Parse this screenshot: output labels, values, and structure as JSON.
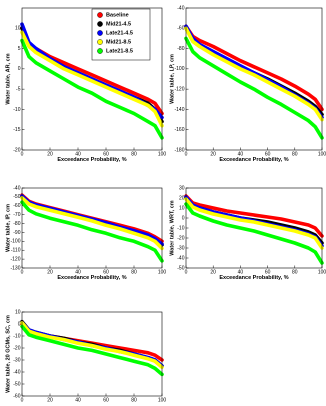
{
  "chart_data": [
    {
      "type": "line",
      "ylabel": "Water table, AR, cm",
      "xlabel": "Exceedance Probability, %",
      "xlim": [
        0,
        100
      ],
      "xticks": [
        0,
        20,
        40,
        60,
        80,
        100
      ],
      "ylim": [
        -20,
        15
      ],
      "yticks": [
        -20,
        -15,
        -10,
        -5,
        0,
        5,
        10
      ],
      "legend": "upper right",
      "x": [
        0,
        5,
        10,
        20,
        30,
        40,
        50,
        60,
        70,
        80,
        90,
        95,
        100
      ],
      "series": [
        {
          "name": "Baseline",
          "color": "#ff0000",
          "values": [
            10,
            6,
            5,
            3,
            1.5,
            0,
            -1.5,
            -3,
            -4.5,
            -6,
            -7.5,
            -8.5,
            -11
          ]
        },
        {
          "name": "Mid21-4.5",
          "color": "#000000",
          "values": [
            10,
            6,
            4.5,
            2.5,
            0.5,
            -1,
            -2.5,
            -4,
            -5.5,
            -7,
            -8.5,
            -10,
            -13
          ]
        },
        {
          "name": "Late21-4.5",
          "color": "#0000ff",
          "values": [
            11,
            6.5,
            5,
            2.5,
            0.5,
            -1,
            -2.5,
            -4,
            -5.5,
            -7,
            -9,
            -10,
            -12
          ]
        },
        {
          "name": "Mid21-8.5",
          "color": "#ffff00",
          "values": [
            9,
            5.5,
            4,
            2,
            0,
            -1.5,
            -3,
            -4.5,
            -6,
            -7.5,
            -9,
            -10.5,
            -14
          ]
        },
        {
          "name": "Late21-8.5",
          "color": "#00ff00",
          "values": [
            7,
            3,
            1.5,
            -0.5,
            -2.5,
            -4.5,
            -6,
            -8,
            -9.5,
            -11,
            -13,
            -14,
            -17
          ]
        }
      ]
    },
    {
      "type": "line",
      "ylabel": "Water table, LP, cm",
      "xlabel": "Exceedance Probability, %",
      "xlim": [
        0,
        100
      ],
      "xticks": [
        0,
        20,
        40,
        60,
        80,
        100
      ],
      "ylim": [
        -180,
        -40
      ],
      "yticks": [
        -180,
        -160,
        -140,
        -120,
        -100,
        -80,
        -60,
        -40
      ],
      "x": [
        0,
        5,
        10,
        20,
        30,
        40,
        50,
        60,
        70,
        80,
        90,
        95,
        100
      ],
      "series": [
        {
          "color": "#ff0000",
          "values": [
            -58,
            -68,
            -72,
            -78,
            -85,
            -92,
            -98,
            -104,
            -110,
            -117,
            -125,
            -130,
            -140
          ]
        },
        {
          "color": "#000000",
          "values": [
            -60,
            -72,
            -77,
            -84,
            -91,
            -98,
            -104,
            -110,
            -117,
            -124,
            -132,
            -137,
            -145
          ]
        },
        {
          "color": "#0000ff",
          "values": [
            -58,
            -70,
            -76,
            -83,
            -90,
            -97,
            -104,
            -111,
            -118,
            -126,
            -134,
            -139,
            -148
          ]
        },
        {
          "color": "#ffff00",
          "values": [
            -60,
            -73,
            -78,
            -86,
            -93,
            -100,
            -106,
            -113,
            -120,
            -127,
            -135,
            -140,
            -150
          ]
        },
        {
          "color": "#00ff00",
          "values": [
            -70,
            -83,
            -89,
            -97,
            -105,
            -113,
            -120,
            -128,
            -135,
            -143,
            -151,
            -157,
            -168
          ]
        }
      ]
    },
    {
      "type": "line",
      "ylabel": "Water table, IP, cm",
      "xlabel": "Exceedance Probability, %",
      "xlim": [
        0,
        100
      ],
      "xticks": [
        0,
        20,
        40,
        60,
        80,
        100
      ],
      "ylim": [
        -130,
        -40
      ],
      "yticks": [
        -130,
        -120,
        -110,
        -100,
        -90,
        -80,
        -70,
        -60,
        -50,
        -40
      ],
      "x": [
        0,
        5,
        10,
        20,
        30,
        40,
        50,
        60,
        70,
        80,
        90,
        95,
        100
      ],
      "series": [
        {
          "color": "#ff0000",
          "values": [
            -48,
            -55,
            -58,
            -62,
            -66,
            -70,
            -74,
            -78,
            -82,
            -86,
            -91,
            -95,
            -100
          ]
        },
        {
          "color": "#000000",
          "values": [
            -50,
            -57,
            -60,
            -64,
            -68,
            -72,
            -76,
            -80,
            -85,
            -89,
            -94,
            -98,
            -104
          ]
        },
        {
          "color": "#0000ff",
          "values": [
            -49,
            -56,
            -59,
            -63,
            -67,
            -71,
            -75,
            -79,
            -84,
            -88,
            -93,
            -97,
            -103
          ]
        },
        {
          "color": "#ffff00",
          "values": [
            -51,
            -58,
            -61,
            -65,
            -69,
            -73,
            -77,
            -82,
            -86,
            -91,
            -96,
            -100,
            -108
          ]
        },
        {
          "color": "#00ff00",
          "values": [
            -56,
            -65,
            -69,
            -74,
            -78,
            -82,
            -87,
            -91,
            -96,
            -100,
            -106,
            -110,
            -122
          ]
        }
      ]
    },
    {
      "type": "line",
      "ylabel": "Water table, WRT, cm",
      "xlabel": "Exceedance Probability, %",
      "xlim": [
        0,
        100
      ],
      "xticks": [
        0,
        20,
        40,
        60,
        80,
        100
      ],
      "ylim": [
        -50,
        30
      ],
      "yticks": [
        -50,
        -40,
        -30,
        -20,
        -10,
        0,
        10,
        20,
        30
      ],
      "x": [
        0,
        5,
        10,
        20,
        30,
        40,
        50,
        60,
        70,
        80,
        90,
        95,
        100
      ],
      "series": [
        {
          "color": "#ff0000",
          "values": [
            22,
            15,
            13,
            10,
            7,
            5,
            3,
            1,
            -1,
            -4,
            -7,
            -10,
            -18
          ]
        },
        {
          "color": "#000000",
          "values": [
            20,
            12,
            10,
            6,
            3,
            0,
            -2,
            -4,
            -7,
            -10,
            -14,
            -17,
            -25
          ]
        },
        {
          "color": "#0000ff",
          "values": [
            21,
            13,
            10,
            6,
            3,
            0,
            -3,
            -6,
            -9,
            -12,
            -16,
            -19,
            -28
          ]
        },
        {
          "color": "#ffff00",
          "values": [
            19,
            11,
            8,
            4,
            1,
            -2,
            -4,
            -7,
            -10,
            -13,
            -17,
            -20,
            -30
          ]
        },
        {
          "color": "#00ff00",
          "values": [
            14,
            5,
            2,
            -3,
            -7,
            -10,
            -13,
            -17,
            -21,
            -25,
            -30,
            -34,
            -45
          ]
        }
      ]
    },
    {
      "type": "line",
      "ylabel": "Water table, 20 GCMs, SC, cm",
      "xlim": [
        0,
        100
      ],
      "xticks": [
        0,
        20,
        40,
        60,
        80,
        100
      ],
      "ylim": [
        -60,
        10
      ],
      "yticks": [
        -60,
        -50,
        -40,
        -30,
        -20,
        -10,
        0,
        10
      ],
      "x": [
        0,
        5,
        10,
        20,
        30,
        40,
        50,
        60,
        70,
        80,
        90,
        95,
        100
      ],
      "series": [
        {
          "color": "#ff0000",
          "values": [
            0,
            -6,
            -8,
            -10,
            -12,
            -14,
            -16,
            -18,
            -20,
            -22,
            -24,
            -26,
            -30
          ]
        },
        {
          "color": "#000000",
          "values": [
            2,
            -5,
            -7,
            -10,
            -12,
            -15,
            -17,
            -20,
            -22,
            -25,
            -28,
            -30,
            -35
          ]
        },
        {
          "color": "#0000ff",
          "values": [
            1,
            -5,
            -7,
            -10,
            -13,
            -15,
            -18,
            -20,
            -23,
            -25,
            -28,
            -30,
            -35
          ]
        },
        {
          "color": "#ffff00",
          "values": [
            1,
            -6,
            -8,
            -11,
            -13,
            -16,
            -18,
            -21,
            -23,
            -26,
            -29,
            -31,
            -36
          ]
        },
        {
          "color": "#00ff00",
          "values": [
            -2,
            -9,
            -11,
            -14,
            -17,
            -20,
            -22,
            -25,
            -28,
            -31,
            -34,
            -37,
            -42
          ]
        }
      ]
    }
  ]
}
